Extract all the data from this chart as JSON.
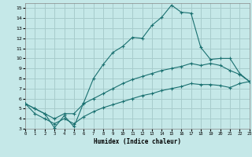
{
  "xlabel": "Humidex (Indice chaleur)",
  "bg_color": "#c5e8e8",
  "grid_color": "#a8cccc",
  "line_color": "#1a7070",
  "xlim": [
    0,
    23
  ],
  "ylim": [
    3,
    15.5
  ],
  "xticks": [
    0,
    1,
    2,
    3,
    4,
    5,
    6,
    7,
    8,
    9,
    10,
    11,
    12,
    13,
    14,
    15,
    16,
    17,
    18,
    19,
    20,
    21,
    22,
    23
  ],
  "yticks": [
    3,
    4,
    5,
    6,
    7,
    8,
    9,
    10,
    11,
    12,
    13,
    14,
    15
  ],
  "line1_x": [
    0,
    1,
    2,
    3,
    4,
    5,
    6,
    7,
    8,
    9,
    10,
    11,
    12,
    13,
    14,
    15,
    16,
    17,
    18,
    19,
    20,
    21,
    22,
    23
  ],
  "line1_y": [
    5.5,
    5.0,
    4.5,
    3.1,
    4.3,
    3.2,
    5.6,
    8.0,
    9.4,
    10.6,
    11.2,
    12.1,
    12.0,
    13.3,
    14.1,
    15.3,
    14.6,
    14.5,
    11.1,
    9.9,
    10.0,
    10.0,
    8.5,
    7.7
  ],
  "line2_x": [
    0,
    1,
    2,
    3,
    4,
    5,
    6,
    7,
    8,
    9,
    10,
    11,
    12,
    13,
    14,
    15,
    16,
    17,
    18,
    19,
    20,
    21,
    22,
    23
  ],
  "line2_y": [
    5.5,
    5.0,
    4.5,
    4.0,
    4.5,
    4.5,
    5.5,
    6.0,
    6.5,
    7.0,
    7.5,
    7.9,
    8.2,
    8.5,
    8.8,
    9.0,
    9.2,
    9.5,
    9.3,
    9.5,
    9.3,
    8.8,
    8.4,
    7.7
  ],
  "line3_x": [
    0,
    1,
    2,
    3,
    4,
    5,
    6,
    7,
    8,
    9,
    10,
    11,
    12,
    13,
    14,
    15,
    16,
    17,
    18,
    19,
    20,
    21,
    22,
    23
  ],
  "line3_y": [
    5.5,
    4.5,
    4.0,
    3.5,
    4.0,
    3.5,
    4.2,
    4.7,
    5.1,
    5.4,
    5.7,
    6.0,
    6.3,
    6.5,
    6.8,
    7.0,
    7.2,
    7.5,
    7.4,
    7.4,
    7.3,
    7.1,
    7.5,
    7.7
  ]
}
